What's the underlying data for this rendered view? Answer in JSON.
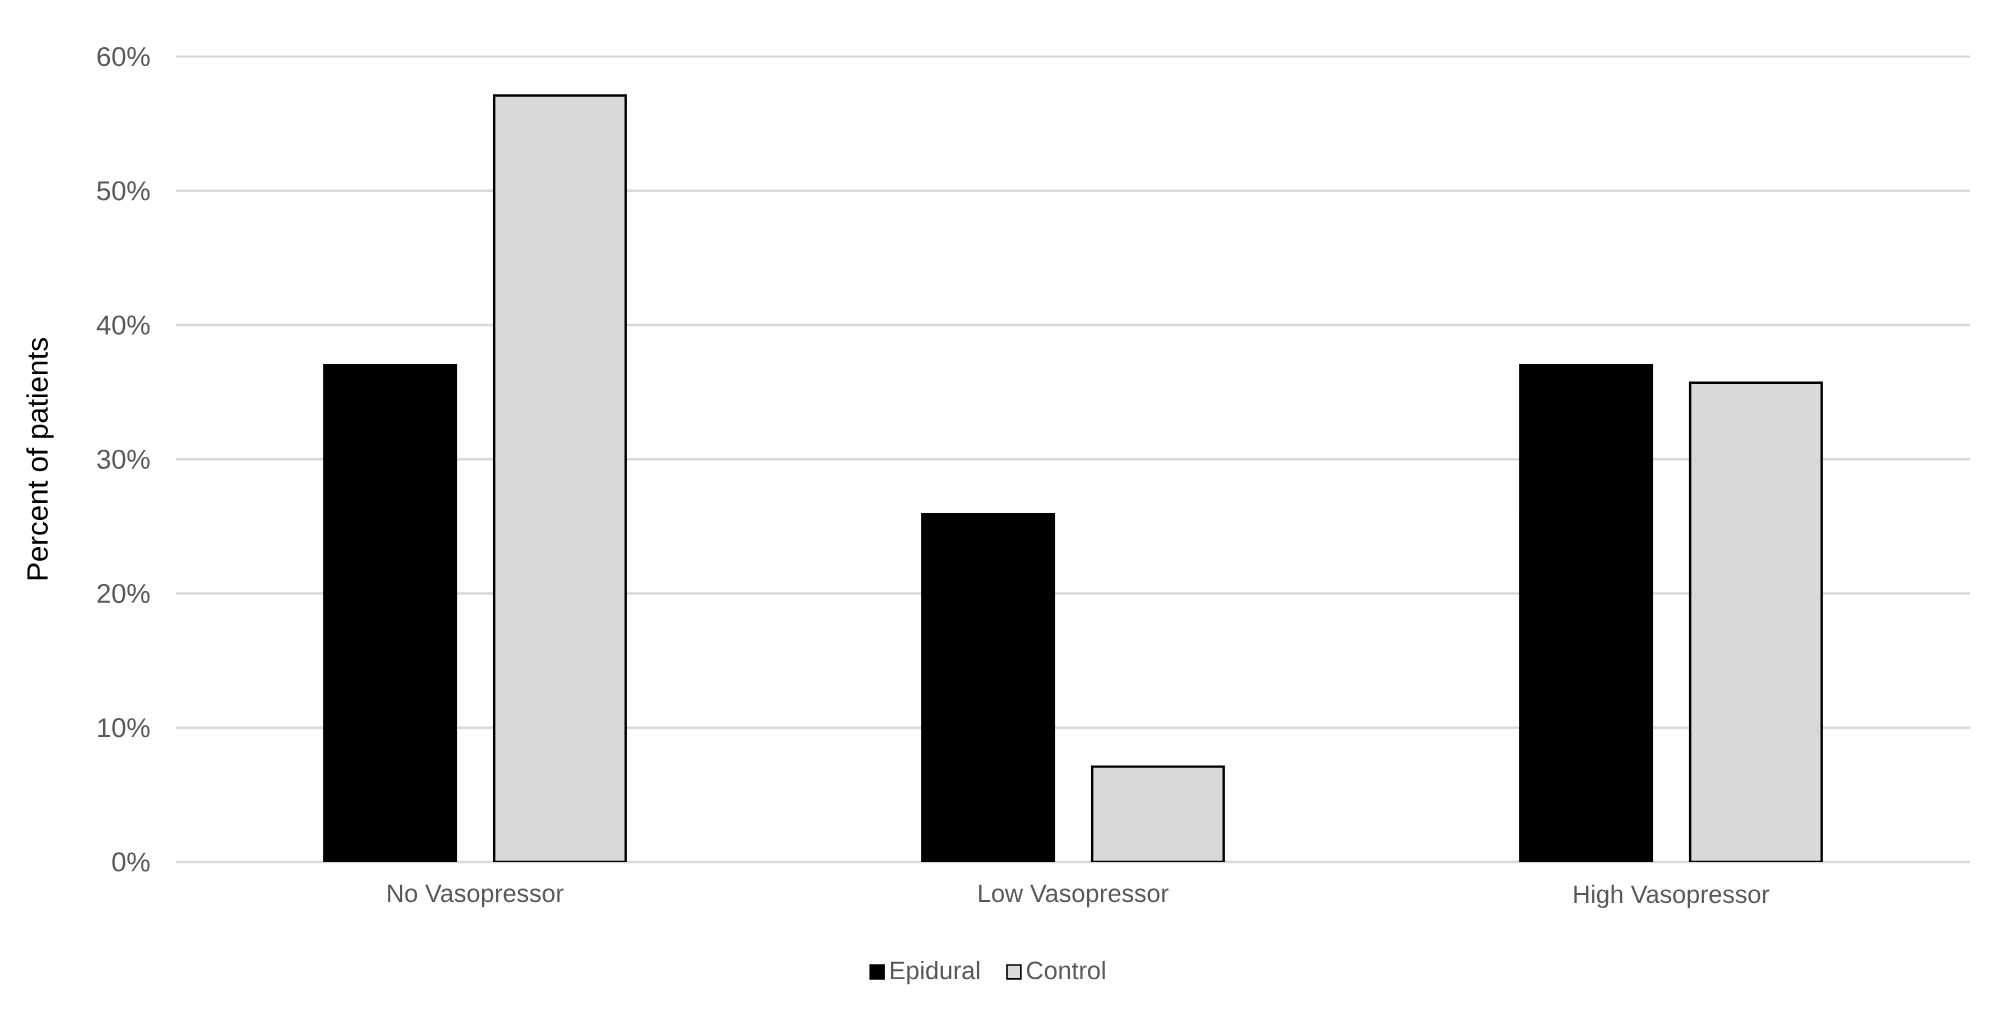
{
  "chart_data": {
    "type": "bar",
    "ylabel": "Percent of patients",
    "categories": [
      "No Vasopressor",
      "Low Vasopressor",
      "High Vasopressor"
    ],
    "series": [
      {
        "name": "Epidural",
        "color": "#000000",
        "values": [
          37.0,
          25.9,
          37.0
        ]
      },
      {
        "name": "Control",
        "color": "#d9d9d9",
        "values": [
          57.1,
          7.1,
          35.7
        ]
      }
    ],
    "ylim": [
      0,
      60
    ],
    "yticks": [
      {
        "value": 0,
        "label": "0%"
      },
      {
        "value": 10,
        "label": "10%"
      },
      {
        "value": 20,
        "label": "20%"
      },
      {
        "value": 30,
        "label": "30%"
      },
      {
        "value": 40,
        "label": "40%"
      },
      {
        "value": 50,
        "label": "50%"
      },
      {
        "value": 60,
        "label": "60%"
      }
    ],
    "grid": "y",
    "legend": "bottom"
  }
}
